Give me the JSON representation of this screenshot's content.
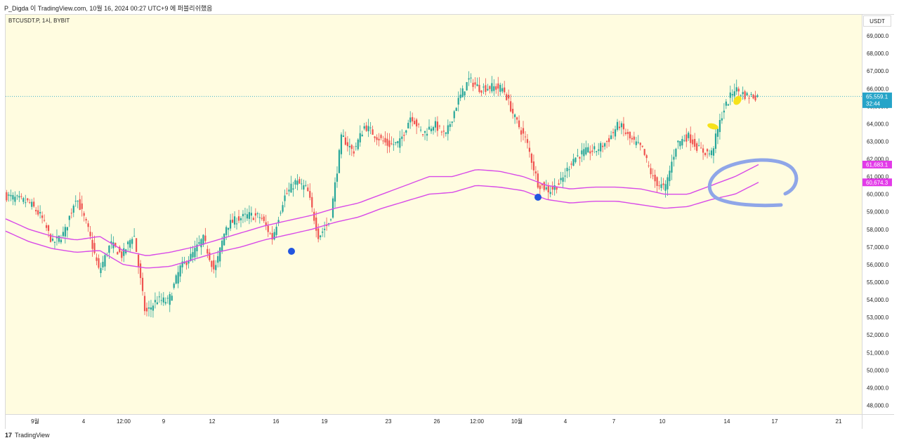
{
  "header": {
    "publish_text": "P_Digda 이 TradingView.com, 10월 16, 2024 00:27 UTC+9 에 퍼블리쉬했음"
  },
  "legend": {
    "symbol": "BTCUSDT.P, 1시, BYBIT"
  },
  "axis": {
    "currency": "USDT"
  },
  "footer": {
    "logo_text": "TradingView",
    "logo_mark": "17"
  },
  "chart_data": {
    "type": "candlestick",
    "ylim": [
      47500,
      70200
    ],
    "y_ticks": [
      48000,
      49000,
      50000,
      51000,
      52000,
      53000,
      54000,
      55000,
      56000,
      57000,
      58000,
      59000,
      60000,
      61000,
      62000,
      63000,
      64000,
      65000,
      66000,
      67000,
      68000,
      69000
    ],
    "y_tick_labels": [
      "48,000.0",
      "49,000.0",
      "50,000.0",
      "51,000.0",
      "52,000.0",
      "53,000.0",
      "54,000.0",
      "55,000.0",
      "56,000.0",
      "57,000.0",
      "58,000.0",
      "59,000.0",
      "60,000.0",
      "61,000.0",
      "62,000.0",
      "63,000.0",
      "64,000.0",
      "65,000.0",
      "66,000.0",
      "67,000.0",
      "68,000.0",
      "69,000.0"
    ],
    "x_ticks": [
      "9월",
      "4",
      "12:00",
      "9",
      "12",
      "16",
      "19",
      "23",
      "26",
      "12:00",
      "10월",
      "4",
      "7",
      "10",
      "14",
      "17",
      "21"
    ],
    "price_series": [
      59900,
      59700,
      59500,
      58700,
      57200,
      57800,
      59900,
      58100,
      55600,
      57200,
      56500,
      57800,
      53200,
      54000,
      53900,
      55800,
      56500,
      57500,
      55600,
      58200,
      58600,
      58800,
      58700,
      57500,
      59800,
      60700,
      60300,
      57600,
      58500,
      63300,
      62400,
      63900,
      63300,
      62800,
      62900,
      64500,
      63400,
      64000,
      63300,
      65200,
      66500,
      66000,
      66100,
      66000,
      64300,
      63000,
      60600,
      60200,
      60700,
      62000,
      62400,
      62500,
      63000,
      64000,
      63100,
      62600,
      60800,
      60300,
      62900,
      63300,
      62500,
      62300,
      64700,
      66000,
      65600,
      65559
    ],
    "envelope_upper": [
      58600,
      58000,
      57600,
      57400,
      57600,
      56800,
      56500,
      56700,
      57000,
      57400,
      57800,
      58200,
      58500,
      58800,
      59200,
      59500,
      60000,
      60500,
      61000,
      61000,
      61400,
      61300,
      61000,
      60500,
      60300,
      60400,
      60400,
      60300,
      60000,
      60000,
      60500,
      61000,
      61683
    ],
    "envelope_lower": [
      57900,
      57300,
      56900,
      56700,
      56800,
      56000,
      55800,
      55900,
      56300,
      56700,
      57000,
      57400,
      57700,
      58000,
      58400,
      58700,
      59200,
      59600,
      60000,
      60100,
      60500,
      60400,
      60200,
      59700,
      59500,
      59600,
      59600,
      59400,
      59200,
      59300,
      59700,
      60000,
      60674
    ],
    "last_price": {
      "value": 65559.1,
      "label": "65,559.1",
      "countdown": "32:44",
      "color": "#26a4c8"
    },
    "markers": [
      {
        "label": "61,683.1",
        "value": 61683.1,
        "color": "#e23ae8"
      },
      {
        "label": "60,674.3",
        "value": 60674.3,
        "color": "#e23ae8"
      }
    ],
    "colors": {
      "up": "#26a69a",
      "down": "#ef5350",
      "envelope": "#d84ae8",
      "background": "#fffce0",
      "dot": "#2255e0",
      "highlight": "#f6e21a",
      "annotation": "#8fa6e8"
    }
  }
}
